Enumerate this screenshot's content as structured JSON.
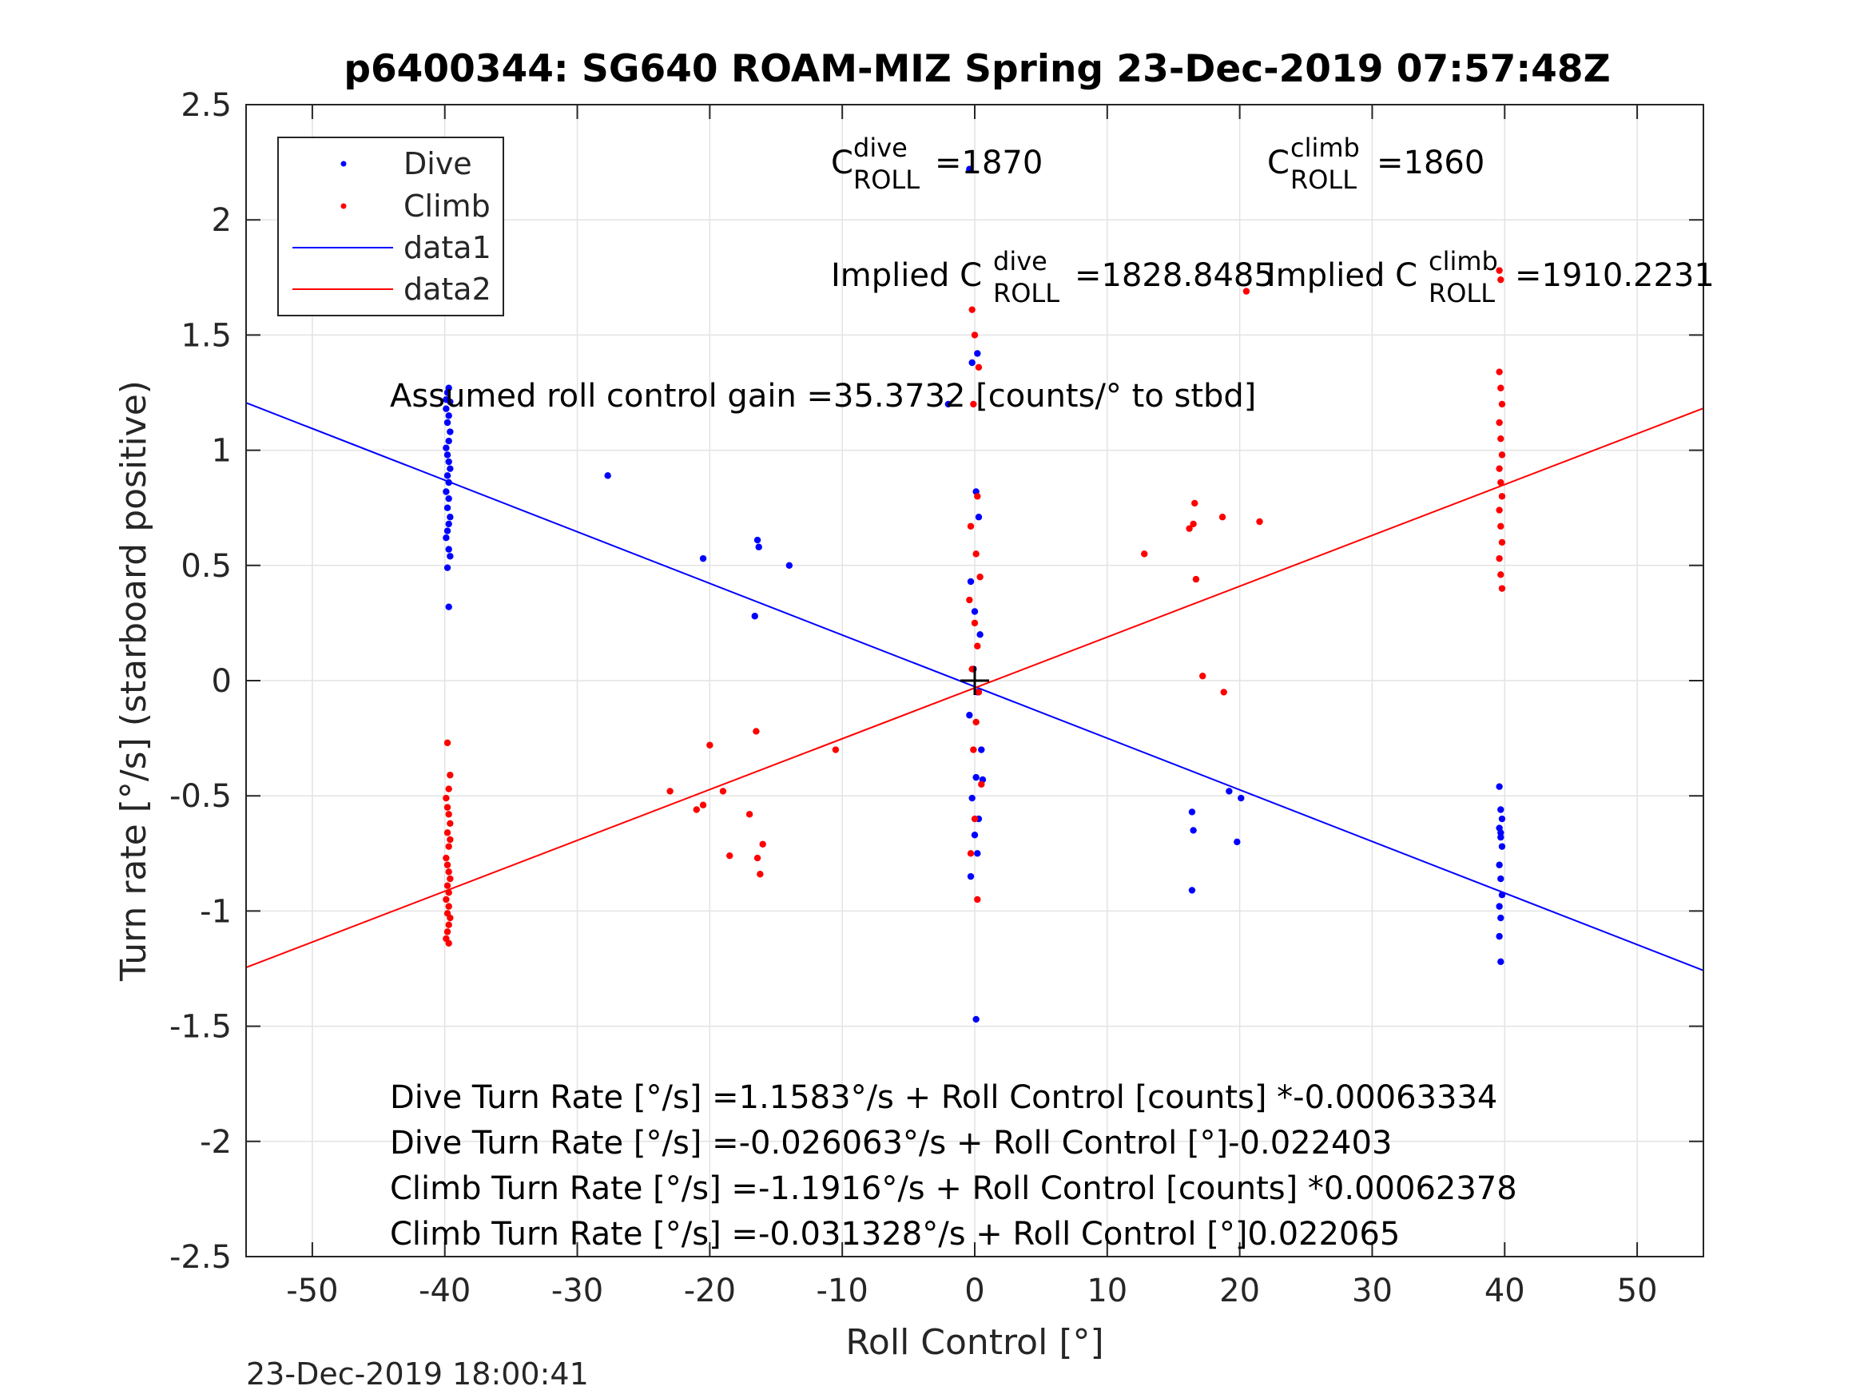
{
  "title": "p6400344: SG640 ROAM-MIZ Spring 23-Dec-2019 07:57:48Z",
  "timestamp": "23-Dec-2019 18:00:41",
  "chart_data": {
    "type": "scatter",
    "title": "p6400344: SG640 ROAM-MIZ Spring 23-Dec-2019 07:57:48Z",
    "xlabel": "Roll Control [°]",
    "ylabel": "Turn rate [°/s] (starboard positive)",
    "xlim": [
      -55,
      55
    ],
    "ylim": [
      -2.5,
      2.5
    ],
    "xticks": [
      -50,
      -40,
      -30,
      -20,
      -10,
      0,
      10,
      20,
      30,
      40,
      50
    ],
    "yticks": [
      2.5,
      2,
      1.5,
      1,
      0.5,
      0,
      -0.5,
      -1,
      -1.5,
      -2,
      -2.5
    ],
    "xtick_labels": [
      "-50",
      "-40",
      "-30",
      "-20",
      "-10",
      "0",
      "10",
      "20",
      "30",
      "40",
      "50"
    ],
    "ytick_labels": [
      "2.5",
      "2",
      "1.5",
      "1",
      "0.5",
      "0",
      "-0.5",
      "-1",
      "-1.5",
      "-2",
      "-2.5"
    ],
    "grid": true,
    "legend_position": "top-left",
    "legend": [
      "Dive",
      "Climb",
      "data1",
      "data2"
    ],
    "series": [
      {
        "name": "Dive",
        "kind": "points",
        "color": "#0000ff",
        "x": [
          -39.7,
          -39.8,
          -39.6,
          -39.9,
          -39.7,
          -39.8,
          -39.6,
          -39.7,
          -39.9,
          -39.8,
          -39.7,
          -39.6,
          -39.8,
          -39.7,
          -39.9,
          -39.7,
          -39.8,
          -39.6,
          -39.7,
          -39.8,
          -39.9,
          -39.7,
          -39.6,
          -39.8,
          -39.7,
          -39.9,
          -27.7,
          -20.5,
          -16.4,
          -16.3,
          -16.6,
          -14.0,
          -2.0,
          -0.4,
          0.2,
          -0.2,
          0.1,
          0.3,
          -0.3,
          0.0,
          0.4,
          -0.1,
          0.2,
          -0.4,
          0.5,
          0.1,
          -0.2,
          0.3,
          0.0,
          0.2,
          -0.3,
          0.6,
          0.1,
          16.4,
          16.5,
          16.4,
          19.2,
          19.8,
          20.1,
          39.6,
          39.7,
          39.8,
          39.6,
          39.7,
          39.8,
          39.6,
          39.7,
          39.8,
          39.6,
          39.7,
          39.6,
          39.7,
          39.7
        ],
        "y": [
          1.27,
          1.25,
          1.21,
          1.18,
          1.15,
          1.12,
          1.08,
          1.04,
          1.01,
          0.98,
          0.95,
          0.92,
          0.89,
          0.86,
          0.82,
          0.79,
          0.75,
          0.71,
          0.68,
          0.65,
          0.62,
          0.57,
          0.54,
          0.49,
          0.32,
          1.22,
          0.89,
          0.53,
          0.61,
          0.58,
          0.28,
          0.5,
          1.2,
          2.22,
          1.42,
          1.38,
          0.82,
          0.71,
          0.43,
          0.3,
          0.2,
          0.05,
          -0.05,
          -0.15,
          -0.3,
          -0.42,
          -0.51,
          -0.6,
          -0.67,
          -0.75,
          -0.85,
          -0.43,
          -1.47,
          -0.57,
          -0.65,
          -0.91,
          -0.48,
          -0.7,
          -0.51,
          -0.46,
          -0.56,
          -0.6,
          -0.64,
          -0.68,
          -0.72,
          -0.8,
          -0.86,
          -0.93,
          -0.98,
          -1.03,
          -1.11,
          -1.22,
          -0.66
        ]
      },
      {
        "name": "Climb",
        "kind": "points",
        "color": "#ff0000",
        "x": [
          -39.8,
          -39.6,
          -39.7,
          -39.9,
          -39.7,
          -39.8,
          -39.6,
          -39.7,
          -39.9,
          -39.8,
          -39.7,
          -39.6,
          -39.8,
          -39.7,
          -39.9,
          -39.7,
          -39.8,
          -39.6,
          -39.7,
          -39.8,
          -39.9,
          -39.7,
          -39.6,
          -39.8,
          -23.0,
          -21.0,
          -20.5,
          -20.0,
          -19.0,
          -18.5,
          -17.0,
          -16.5,
          -16.4,
          -16.2,
          -16.0,
          -10.5,
          -0.2,
          0.0,
          0.3,
          -0.1,
          0.2,
          -0.3,
          0.1,
          0.4,
          -0.4,
          0.0,
          0.2,
          -0.2,
          0.3,
          0.1,
          -0.1,
          0.5,
          0.0,
          -0.3,
          0.2,
          12.8,
          16.2,
          16.5,
          16.6,
          16.7,
          17.2,
          18.7,
          18.8,
          20.5,
          21.5,
          39.6,
          39.7,
          39.8,
          39.6,
          39.7,
          39.8,
          39.6,
          39.7,
          39.8,
          39.6,
          39.7,
          39.8,
          39.6,
          39.7,
          39.8,
          39.7,
          39.6
        ],
        "y": [
          -0.27,
          -0.41,
          -0.47,
          -0.51,
          -0.58,
          -0.66,
          -0.69,
          -0.72,
          -0.77,
          -0.8,
          -0.83,
          -0.86,
          -0.89,
          -0.92,
          -0.95,
          -0.98,
          -1.01,
          -1.03,
          -1.06,
          -1.09,
          -1.12,
          -1.14,
          -0.62,
          -0.55,
          -0.48,
          -0.56,
          -0.54,
          -0.28,
          -0.48,
          -0.76,
          -0.58,
          -0.22,
          -0.77,
          -0.84,
          -0.71,
          -0.3,
          1.61,
          1.5,
          1.36,
          1.2,
          0.8,
          0.67,
          0.55,
          0.45,
          0.35,
          0.25,
          0.15,
          0.05,
          -0.05,
          -0.18,
          -0.3,
          -0.45,
          -0.6,
          -0.75,
          -0.95,
          0.55,
          0.66,
          0.68,
          0.77,
          0.44,
          0.02,
          0.71,
          -0.05,
          1.69,
          0.69,
          1.34,
          1.27,
          1.2,
          1.12,
          1.05,
          0.98,
          0.92,
          0.86,
          0.8,
          0.74,
          0.67,
          0.6,
          0.53,
          0.46,
          0.4,
          1.74,
          1.78
        ]
      },
      {
        "name": "data1",
        "kind": "line",
        "color": "#0000ff",
        "x": [
          -55,
          55
        ],
        "y": [
          1.206,
          -1.258
        ]
      },
      {
        "name": "data2",
        "kind": "line",
        "color": "#ff0000",
        "x": [
          -55,
          55
        ],
        "y": [
          -1.245,
          1.182
        ]
      }
    ],
    "origin_marker": {
      "x": 0,
      "y": 0,
      "symbol": "+"
    },
    "annotations": {
      "c_dive": {
        "C": "C",
        "sup": "dive",
        "sub": "ROLL",
        "value": "=1870"
      },
      "c_climb": {
        "C": "C",
        "sup": "climb",
        "sub": "ROLL",
        "value": "=1860"
      },
      "implied_dive": {
        "prefix": "Implied C",
        "sup": "dive",
        "sub": "ROLL",
        "value": "=1828.8485"
      },
      "implied_climb": {
        "prefix": "Implied C",
        "sup": "climb",
        "sub": "ROLL",
        "value": "=1910.2231"
      },
      "gain": "Assumed roll control gain =35.3732 [counts/° to stbd]",
      "eq1": "Dive Turn Rate [°/s] =1.1583°/s + Roll Control [counts] *-0.00063334",
      "eq2": "Dive Turn Rate [°/s] =-0.026063°/s + Roll Control [°]-0.022403",
      "eq3": "Climb Turn Rate [°/s] =-1.1916°/s + Roll Control [counts] *0.00062378",
      "eq4": "Climb Turn Rate [°/s] =-0.031328°/s + Roll Control [°]0.022065"
    }
  }
}
